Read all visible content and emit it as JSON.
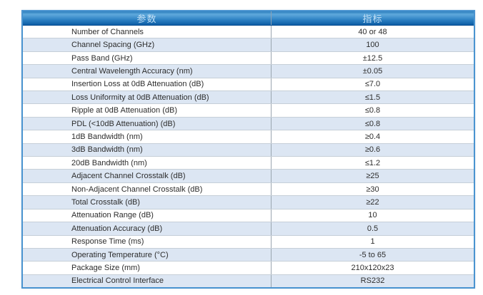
{
  "table": {
    "header": {
      "parameter": "参数",
      "spec": "指标"
    },
    "rows": [
      {
        "param": "Number of Channels",
        "value": "40 or 48"
      },
      {
        "param": "Channel Spacing (GHz)",
        "value": "100"
      },
      {
        "param": "Pass Band (GHz)",
        "value": "±12.5"
      },
      {
        "param": "Central Wavelength Accuracy (nm)",
        "value": "±0.05"
      },
      {
        "param": "Insertion Loss at 0dB Attenuation (dB)",
        "value": "≤7.0"
      },
      {
        "param": "Loss Uniformity at 0dB Attenuation (dB)",
        "value": "≤1.5"
      },
      {
        "param": "Ripple at 0dB Attenuation (dB)",
        "value": "≤0.8"
      },
      {
        "param": "PDL (<10dB Attenuation) (dB)",
        "value": "≤0.8"
      },
      {
        "param": "1dB Bandwidth (nm)",
        "value": "≥0.4"
      },
      {
        "param": "3dB Bandwidth (nm)",
        "value": "≥0.6"
      },
      {
        "param": "20dB Bandwidth (nm)",
        "value": "≤1.2"
      },
      {
        "param": "Adjacent Channel Crosstalk (dB)",
        "value": "≥25"
      },
      {
        "param": "Non-Adjacent Channel Crosstalk (dB)",
        "value": "≥30"
      },
      {
        "param": "Total Crosstalk (dB)",
        "value": "≥22"
      },
      {
        "param": "Attenuation Range (dB)",
        "value": "10"
      },
      {
        "param": "Attenuation Accuracy (dB)",
        "value": "0.5"
      },
      {
        "param": "Response Time (ms)",
        "value": "1"
      },
      {
        "param": "Operating Temperature (°C)",
        "value": "-5 to 65"
      },
      {
        "param": "Package Size (mm)",
        "value": "210x120x23"
      },
      {
        "param": "Electrical Control Interface",
        "value": "RS232"
      }
    ]
  },
  "colors": {
    "header_gradient_top": "#5fa9dc",
    "header_gradient_bottom": "#0c5ca5",
    "header_text": "#c3e0f5",
    "row_stripe": "#dce6f3",
    "row_text": "#2d2d2d",
    "table_border": "#4a94d0",
    "row_separator": "#c6cfd8",
    "column_divider": "#9aa5af"
  }
}
